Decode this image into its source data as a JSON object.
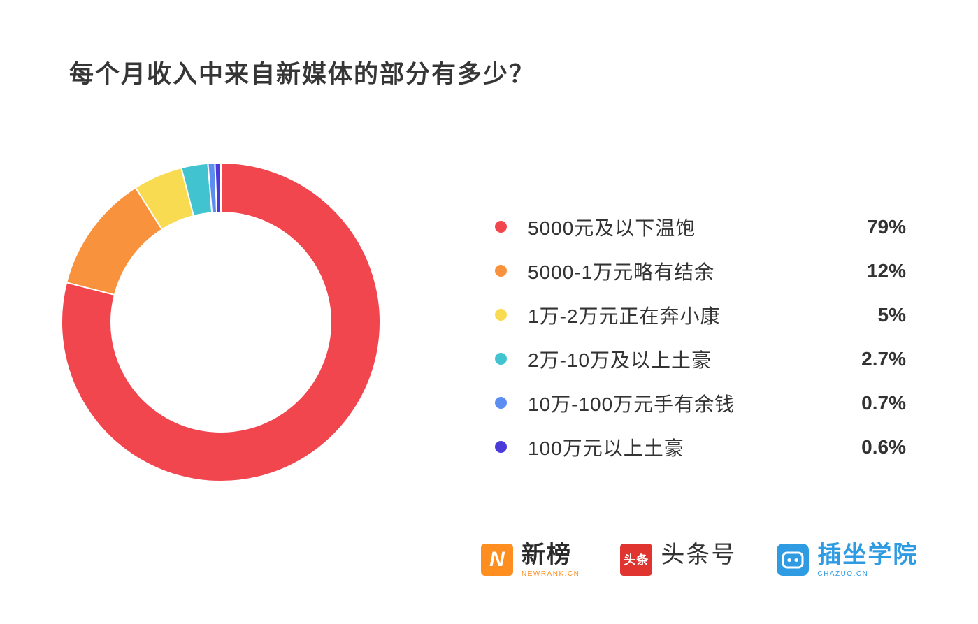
{
  "chart_data": {
    "type": "pie",
    "donut": true,
    "title": "每个月收入中来自新媒体的部分有多少？",
    "legend_position": "right",
    "start_angle_deg": -90,
    "direction": "clockwise",
    "series": [
      {
        "label": "5000元及以下温饱",
        "value": 79,
        "display": "79%",
        "color": "#F2464F"
      },
      {
        "label": "5000-1万元略有结余",
        "value": 12,
        "display": "12%",
        "color": "#F8923D"
      },
      {
        "label": "1万-2万元正在奔小康",
        "value": 5,
        "display": "5%",
        "color": "#F8DB51"
      },
      {
        "label": "2万-10万及以上土豪",
        "value": 2.7,
        "display": "2.7%",
        "color": "#41C4CF"
      },
      {
        "label": "10万-100万元手有余钱",
        "value": 0.7,
        "display": "0.7%",
        "color": "#5C8DF0"
      },
      {
        "label": "100万元以上土豪",
        "value": 0.6,
        "display": "0.6%",
        "color": "#4A3BD8"
      }
    ]
  },
  "footer": {
    "newrank": {
      "icon_glyph": "N",
      "name": "新榜",
      "subtitle": "NEWRANK.CN",
      "icon_color": "#FF8E21"
    },
    "toutiao": {
      "icon_glyph": "头条",
      "name": "头条号",
      "icon_color": "#DF3430"
    },
    "chazuo": {
      "name": "插坐学院",
      "subtitle": "CHAZUO.CN",
      "icon_color": "#2E9BE2"
    }
  }
}
